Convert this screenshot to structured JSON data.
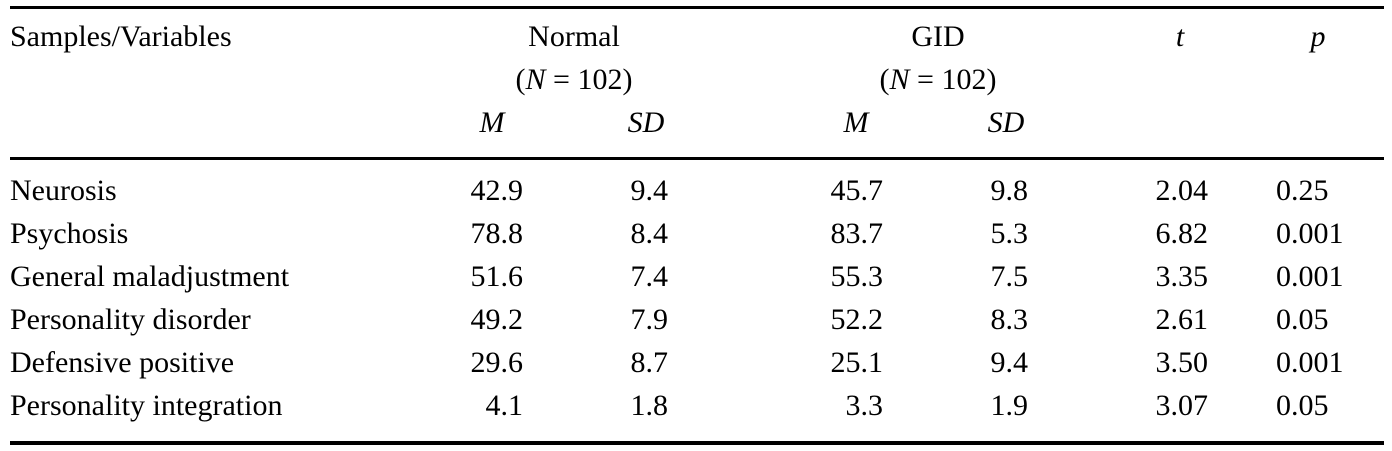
{
  "table": {
    "header": {
      "col_label": "Samples/Variables",
      "group1_name": "Normal",
      "group1_n": "(N = 102)",
      "group2_name": "GID",
      "group2_n": "(N = 102)",
      "mean_label": "M",
      "sd_label": "SD",
      "t_label": "t",
      "p_label": "p"
    },
    "rows": [
      {
        "variable": "Neurosis",
        "normal_m": "42.9",
        "normal_sd": "9.4",
        "gid_m": "45.7",
        "gid_sd": "9.8",
        "t": "2.04",
        "p": "0.25"
      },
      {
        "variable": "Psychosis",
        "normal_m": "78.8",
        "normal_sd": "8.4",
        "gid_m": "83.7",
        "gid_sd": "5.3",
        "t": "6.82",
        "p": "0.001"
      },
      {
        "variable": "General maladjustment",
        "normal_m": "51.6",
        "normal_sd": "7.4",
        "gid_m": "55.3",
        "gid_sd": "7.5",
        "t": "3.35",
        "p": "0.001"
      },
      {
        "variable": "Personality disorder",
        "normal_m": "49.2",
        "normal_sd": "7.9",
        "gid_m": "52.2",
        "gid_sd": "8.3",
        "t": "2.61",
        "p": "0.05"
      },
      {
        "variable": "Defensive positive",
        "normal_m": "29.6",
        "normal_sd": "8.7",
        "gid_m": "25.1",
        "gid_sd": "9.4",
        "t": "3.50",
        "p": "0.001"
      },
      {
        "variable": "Personality integration",
        "normal_m": "4.1",
        "normal_sd": "1.8",
        "gid_m": "3.3",
        "gid_sd": "1.9",
        "t": "3.07",
        "p": "0.05"
      }
    ]
  }
}
